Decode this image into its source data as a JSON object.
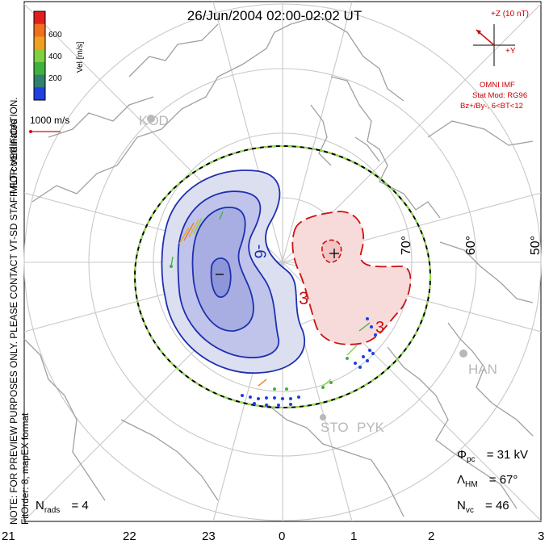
{
  "title": "26/Jun/2004 02:00-02:02 UT",
  "colorbar": {
    "label": "Vel [m/s]",
    "ticks": [
      "600",
      "400",
      "200"
    ],
    "colors": [
      "#e02020",
      "#f07020",
      "#f0a020",
      "#80d040",
      "#40b040",
      "#308070",
      "#2040e0"
    ]
  },
  "coordinates_label": "MLT coordinates",
  "reference_vector": {
    "label": "1000 m/s"
  },
  "side_note": "NOTE: FOR PREVIEW PURPOSES ONLY. PLEASE CONTACT VT-SD STAFF FOR VERIFICATION.",
  "fit_order": "FitOrder: 8, mapEX format",
  "imf": {
    "bz_label": "+Z (10 nT)",
    "by_label": "+Y",
    "source": "OMNI IMF",
    "model": "Stat Mod: RG96",
    "condition": "Bz+/By-, 6<BT<12"
  },
  "latitude_labels": [
    "70°",
    "60°",
    "50°"
  ],
  "stations": [
    "KOD",
    "HAN",
    "STO",
    "PYK"
  ],
  "contour_labels": {
    "negative": "-6",
    "positive": "3",
    "positive2": "3"
  },
  "stats": {
    "phi_pc": "Φpc = 31 kV",
    "phi_pc_sym": "Φ",
    "phi_pc_sub": "pc",
    "phi_pc_val": "= 31 kV",
    "lambda_hm_sym": "Λ",
    "lambda_hm_sub": "HM",
    "lambda_hm_val": "= 67°",
    "n_vc_sym": "N",
    "n_vc_sub": "vc",
    "n_vc_val": "= 46",
    "n_rads_sym": "N",
    "n_rads_sub": "rads",
    "n_rads_val": "= 4"
  },
  "mlt_axis": [
    "21",
    "22",
    "23",
    "0",
    "1",
    "2",
    "3"
  ],
  "accent_colors": {
    "negative_cell": "#1f2fb0",
    "positive_cell": "#cc1111",
    "grid": "#c8c8c8",
    "coast": "#a8a8a8"
  }
}
